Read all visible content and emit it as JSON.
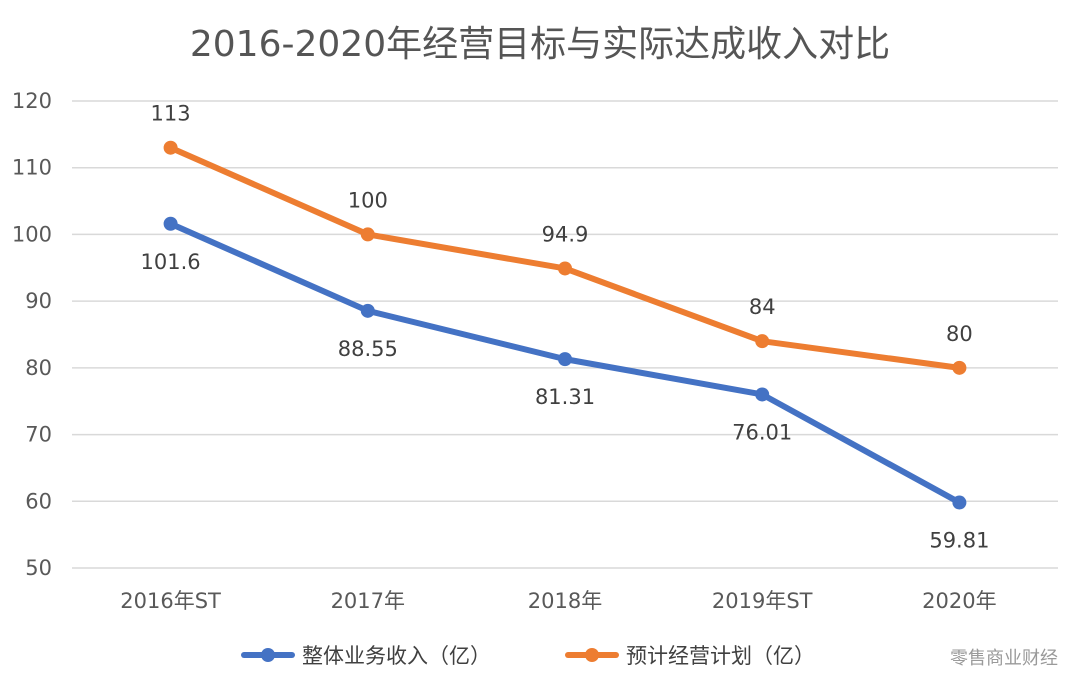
{
  "chart_data": {
    "type": "line",
    "title": "2016-2020年经营目标与实际达成收入对比",
    "categories": [
      "2016年ST",
      "2017年",
      "2018年",
      "2019年ST",
      "2020年"
    ],
    "ylim": [
      50,
      120
    ],
    "yticks": [
      "50",
      "60",
      "70",
      "80",
      "90",
      "100",
      "110",
      "120"
    ],
    "grid": true,
    "legend_position": "bottom",
    "series": [
      {
        "name": "整体业务收入（亿）",
        "color": "#4472C4",
        "values": [
          101.6,
          88.55,
          81.31,
          76.01,
          59.81
        ],
        "labels": [
          "101.6",
          "88.55",
          "81.31",
          "76.01",
          "59.81"
        ],
        "label_position": "below"
      },
      {
        "name": "预计经营计划（亿）",
        "color": "#ED7D31",
        "values": [
          113,
          100,
          94.9,
          84,
          80
        ],
        "labels": [
          "113",
          "100",
          "94.9",
          "84",
          "80"
        ],
        "label_position": "above"
      }
    ]
  },
  "watermark": "零售商业财经"
}
